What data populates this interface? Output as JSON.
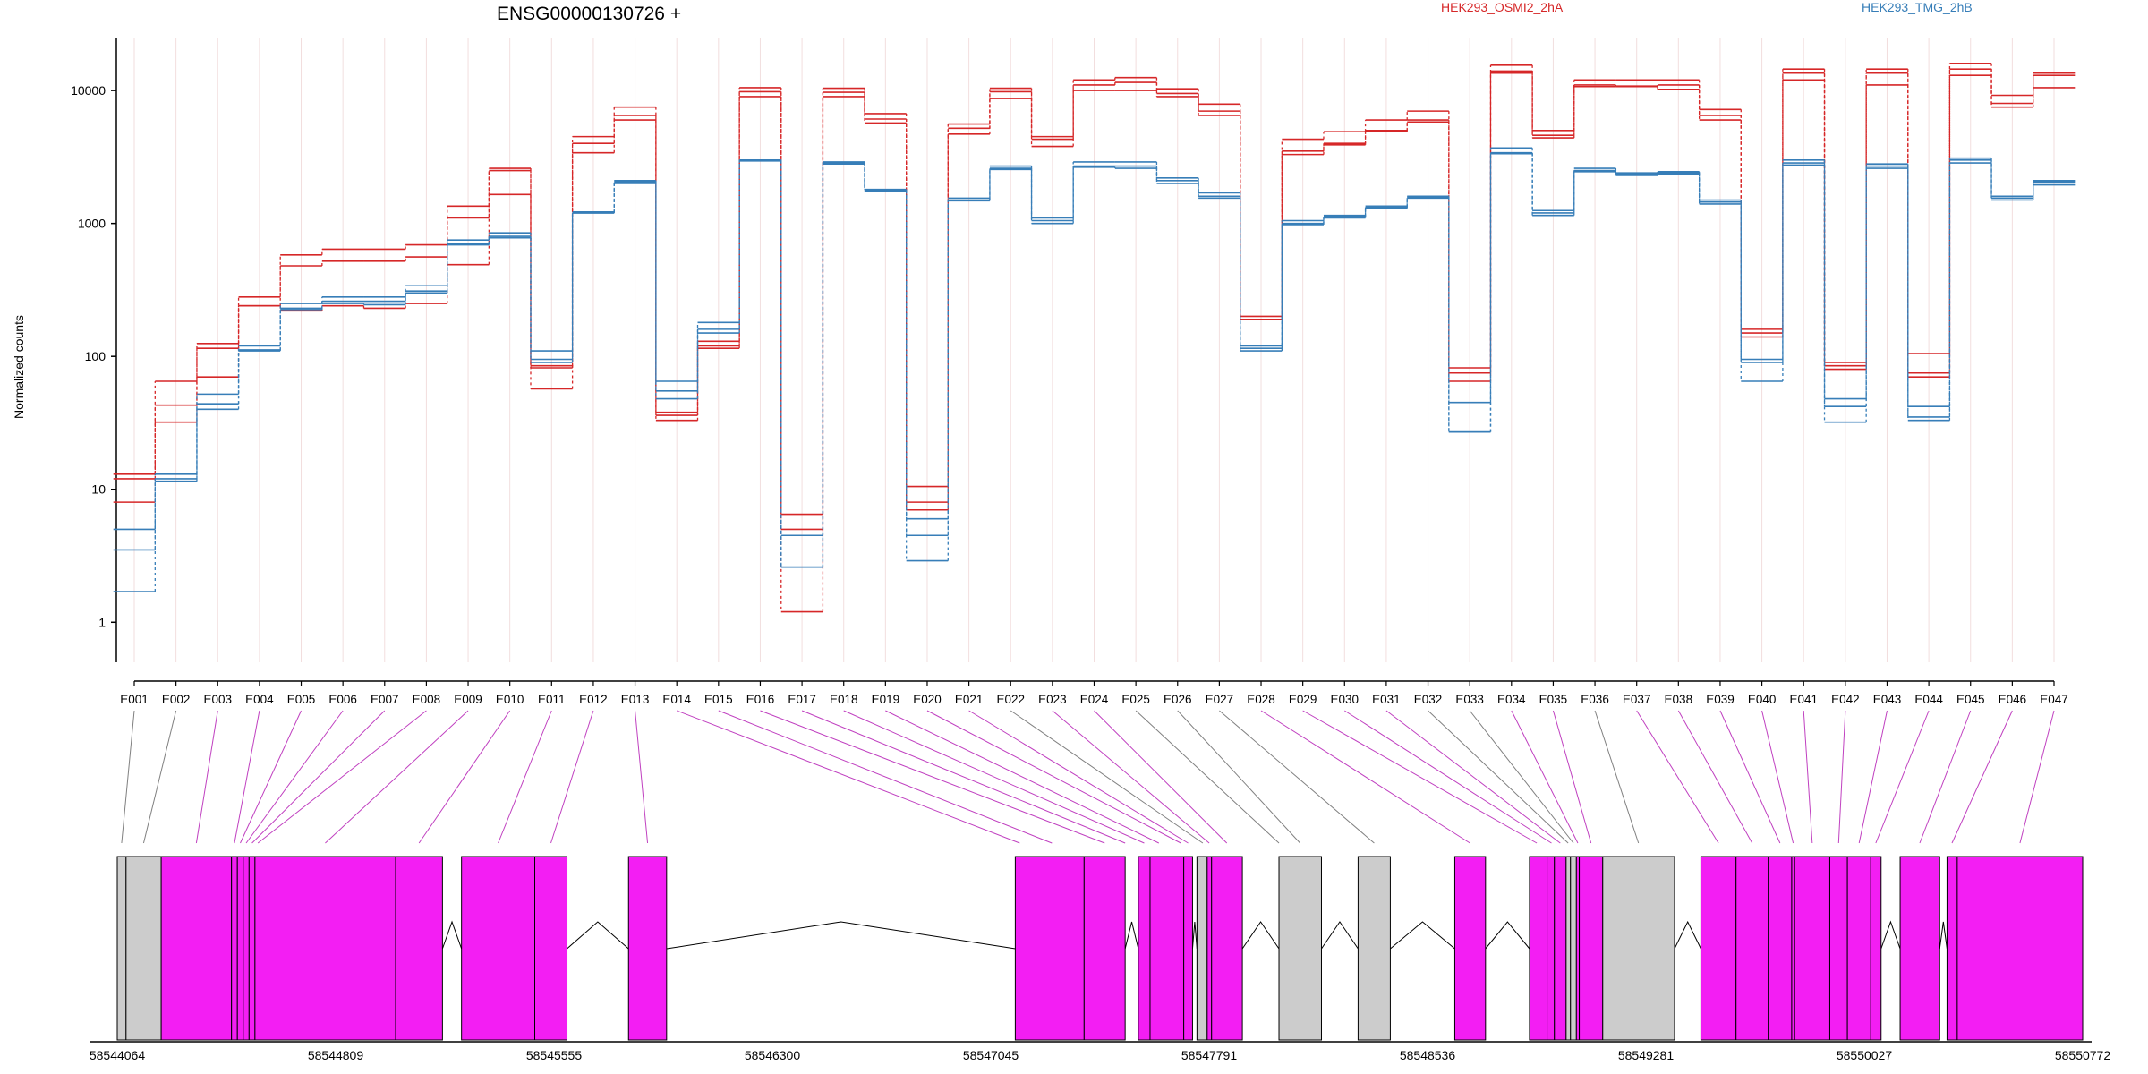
{
  "title": "ENSG00000130726 +",
  "colors": {
    "cond_a": "#d62728",
    "cond_b": "#377eb8",
    "exon_diff": "#f31ef3",
    "exon_other": "#cccccc"
  },
  "chart_data": {
    "type": "line",
    "title": "ENSG00000130726 +",
    "ylabel": "Normalized counts",
    "yscale": "log",
    "ylim": [
      0.5,
      25000
    ],
    "yticks": [
      1,
      10,
      100,
      1000,
      10000
    ],
    "ytick_labels": [
      "1",
      "10",
      "100",
      "1000",
      "10000"
    ],
    "legend": [
      {
        "name": "HEK293_OSMI2_2hA",
        "color": "#d62728"
      },
      {
        "name": "HEK293_TMG_2hB",
        "color": "#377eb8"
      }
    ],
    "categories": [
      "E001",
      "E002",
      "E003",
      "E004",
      "E005",
      "E006",
      "E007",
      "E008",
      "E009",
      "E010",
      "E011",
      "E012",
      "E013",
      "E014",
      "E015",
      "E016",
      "E017",
      "E018",
      "E019",
      "E020",
      "E021",
      "E022",
      "E023",
      "E024",
      "E025",
      "E026",
      "E027",
      "E028",
      "E029",
      "E030",
      "E031",
      "E032",
      "E033",
      "E034",
      "E035",
      "E036",
      "E037",
      "E038",
      "E039",
      "E040",
      "E041",
      "E042",
      "E043",
      "E044",
      "E045",
      "E046",
      "E047"
    ],
    "series": [
      {
        "name": "HEK293_OSMI2_2hA",
        "color": "#d62728",
        "dash": "solid",
        "values": [
          13,
          65,
          125,
          280,
          580,
          640,
          640,
          690,
          1350,
          2600,
          82,
          4500,
          7500,
          36,
          130,
          10500,
          6.5,
          10400,
          6700,
          10.5,
          5600,
          10400,
          4500,
          12000,
          12500,
          10300,
          7900,
          200,
          4300,
          4900,
          6000,
          7000,
          82,
          15500,
          5000,
          12000,
          12000,
          12000,
          7200,
          160,
          14500,
          90,
          14500,
          105,
          16000,
          9200,
          13500
        ]
      },
      {
        "name": "HEK293_OSMI2_2hA",
        "color": "#d62728",
        "dash": "solid",
        "values": [
          8,
          43,
          115,
          240,
          480,
          520,
          520,
          560,
          1100,
          2500,
          85,
          4000,
          6500,
          33,
          115,
          9800,
          5,
          9700,
          6100,
          8,
          5200,
          9800,
          4300,
          11000,
          11500,
          9500,
          7000,
          190,
          3500,
          4000,
          5000,
          6000,
          65,
          14000,
          4600,
          11000,
          10800,
          11000,
          6500,
          140,
          13500,
          80,
          13500,
          75,
          14500,
          8000,
          13000
        ]
      },
      {
        "name": "HEK293_OSMI2_2hA",
        "color": "#d62728",
        "dash": "solid",
        "values": [
          12,
          32,
          70,
          240,
          220,
          240,
          230,
          250,
          490,
          1650,
          57,
          3400,
          6000,
          38,
          120,
          9000,
          1.2,
          9000,
          5700,
          7,
          4700,
          8700,
          3800,
          10000,
          10000,
          9000,
          6500,
          190,
          3300,
          3900,
          4900,
          5800,
          75,
          13500,
          4400,
          10700,
          10700,
          10200,
          6000,
          150,
          12000,
          85,
          11000,
          70,
          13000,
          7500,
          10500
        ]
      },
      {
        "name": "HEK293_TMG_2hB",
        "color": "#377eb8",
        "dash": "solid",
        "values": [
          5,
          13,
          52,
          120,
          250,
          280,
          280,
          340,
          750,
          850,
          110,
          1220,
          2100,
          65,
          180,
          3000,
          4.5,
          2900,
          1800,
          6,
          1550,
          2700,
          1100,
          2900,
          2900,
          2200,
          1700,
          120,
          1050,
          1150,
          1350,
          1600,
          45,
          3700,
          1250,
          2600,
          2400,
          2450,
          1500,
          95,
          3000,
          48,
          2800,
          42,
          3100,
          1600,
          2100
        ]
      },
      {
        "name": "HEK293_TMG_2hB",
        "color": "#377eb8",
        "dash": "solid",
        "values": [
          3.5,
          12,
          44,
          112,
          230,
          260,
          260,
          310,
          700,
          800,
          95,
          1200,
          2050,
          55,
          160,
          3000,
          2.6,
          2850,
          1780,
          4.5,
          1500,
          2600,
          1050,
          2700,
          2700,
          2100,
          1600,
          115,
          1000,
          1120,
          1320,
          1580,
          27,
          3400,
          1200,
          2500,
          2350,
          2400,
          1450,
          90,
          2850,
          42,
          2700,
          35,
          3000,
          1550,
          2050
        ]
      },
      {
        "name": "HEK293_TMG_2hB",
        "color": "#377eb8",
        "dash": "solid",
        "values": [
          1.7,
          11.5,
          40,
          110,
          225,
          250,
          245,
          300,
          690,
          780,
          90,
          1200,
          2000,
          48,
          150,
          2950,
          2.6,
          2800,
          1750,
          2.9,
          1480,
          2550,
          1000,
          2650,
          2600,
          2000,
          1550,
          110,
          980,
          1100,
          1300,
          1550,
          27,
          3350,
          1150,
          2450,
          2300,
          2350,
          1400,
          65,
          2750,
          32,
          2600,
          33,
          2850,
          1500,
          1950
        ]
      }
    ]
  },
  "gene_model": {
    "coordinate_labels": [
      "58544064",
      "58544809",
      "58545555",
      "58546300",
      "58547045",
      "58547791",
      "58548536",
      "58549281",
      "58550027",
      "58550772"
    ],
    "range": [
      58544064,
      58550772
    ],
    "exons": [
      {
        "start": 58544064,
        "end": 58544094,
        "type": "other"
      },
      {
        "start": 58544094,
        "end": 58544214,
        "type": "other"
      },
      {
        "start": 58544214,
        "end": 58544454,
        "type": "diff"
      },
      {
        "start": 58544454,
        "end": 58544474,
        "type": "diff"
      },
      {
        "start": 58544474,
        "end": 58544494,
        "type": "diff"
      },
      {
        "start": 58544494,
        "end": 58544514,
        "type": "diff"
      },
      {
        "start": 58544514,
        "end": 58544534,
        "type": "diff"
      },
      {
        "start": 58544534,
        "end": 58545014,
        "type": "diff"
      },
      {
        "start": 58545014,
        "end": 58545174,
        "type": "diff"
      },
      {
        "start": 58545239,
        "end": 58545489,
        "type": "diff"
      },
      {
        "start": 58545489,
        "end": 58545599,
        "type": "diff"
      },
      {
        "start": 58545809,
        "end": 58545939,
        "type": "diff"
      },
      {
        "start": 58547129,
        "end": 58547364,
        "type": "diff"
      },
      {
        "start": 58547364,
        "end": 58547504,
        "type": "diff"
      },
      {
        "start": 58547549,
        "end": 58547589,
        "type": "diff"
      },
      {
        "start": 58547589,
        "end": 58547704,
        "type": "diff"
      },
      {
        "start": 58547704,
        "end": 58547734,
        "type": "diff"
      },
      {
        "start": 58547749,
        "end": 58547784,
        "type": "other"
      },
      {
        "start": 58547784,
        "end": 58547799,
        "type": "diff"
      },
      {
        "start": 58547799,
        "end": 58547904,
        "type": "diff"
      },
      {
        "start": 58548029,
        "end": 58548174,
        "type": "other"
      },
      {
        "start": 58548299,
        "end": 58548409,
        "type": "other"
      },
      {
        "start": 58548629,
        "end": 58548734,
        "type": "diff"
      },
      {
        "start": 58548884,
        "end": 58548944,
        "type": "diff"
      },
      {
        "start": 58548944,
        "end": 58548969,
        "type": "diff"
      },
      {
        "start": 58548969,
        "end": 58549009,
        "type": "diff"
      },
      {
        "start": 58549009,
        "end": 58549024,
        "type": "other"
      },
      {
        "start": 58549024,
        "end": 58549044,
        "type": "other"
      },
      {
        "start": 58549044,
        "end": 58549054,
        "type": "diff"
      },
      {
        "start": 58549054,
        "end": 58549134,
        "type": "diff"
      },
      {
        "start": 58549134,
        "end": 58549379,
        "type": "other"
      },
      {
        "start": 58549469,
        "end": 58549589,
        "type": "diff"
      },
      {
        "start": 58549589,
        "end": 58549699,
        "type": "diff"
      },
      {
        "start": 58549699,
        "end": 58549779,
        "type": "diff"
      },
      {
        "start": 58549779,
        "end": 58549789,
        "type": "diff"
      },
      {
        "start": 58549789,
        "end": 58549909,
        "type": "diff"
      },
      {
        "start": 58549909,
        "end": 58549969,
        "type": "diff"
      },
      {
        "start": 58549969,
        "end": 58550049,
        "type": "diff"
      },
      {
        "start": 58550049,
        "end": 58550084,
        "type": "diff"
      },
      {
        "start": 58550149,
        "end": 58550284,
        "type": "diff"
      },
      {
        "start": 58550309,
        "end": 58550344,
        "type": "diff"
      },
      {
        "start": 58550344,
        "end": 58550772,
        "type": "diff"
      }
    ],
    "exon_label_links": [
      {
        "label": "E001",
        "target": 58544079,
        "type": "other"
      },
      {
        "label": "E002",
        "target": 58544154,
        "type": "other"
      },
      {
        "label": "E003",
        "target": 58544334,
        "type": "diff"
      },
      {
        "label": "E004",
        "target": 58544464,
        "type": "diff"
      },
      {
        "label": "E005",
        "target": 58544484,
        "type": "diff"
      },
      {
        "label": "E006",
        "target": 58544504,
        "type": "diff"
      },
      {
        "label": "E007",
        "target": 58544524,
        "type": "diff"
      },
      {
        "label": "E008",
        "target": 58544544,
        "type": "diff"
      },
      {
        "label": "E009",
        "target": 58544774,
        "type": "diff"
      },
      {
        "label": "E010",
        "target": 58545094,
        "type": "diff"
      },
      {
        "label": "E011",
        "target": 58545364,
        "type": "diff"
      },
      {
        "label": "E012",
        "target": 58545544,
        "type": "diff"
      },
      {
        "label": "E013",
        "target": 58545874,
        "type": "diff"
      },
      {
        "label": "E014",
        "target": 58547144,
        "type": "diff"
      },
      {
        "label": "E015",
        "target": 58547254,
        "type": "diff"
      },
      {
        "label": "E016",
        "target": 58547434,
        "type": "diff"
      },
      {
        "label": "E017",
        "target": 58547504,
        "type": "diff"
      },
      {
        "label": "E018",
        "target": 58547569,
        "type": "diff"
      },
      {
        "label": "E019",
        "target": 58547619,
        "type": "diff"
      },
      {
        "label": "E020",
        "target": 58547694,
        "type": "diff"
      },
      {
        "label": "E021",
        "target": 58547719,
        "type": "diff"
      },
      {
        "label": "E022",
        "target": 58547769,
        "type": "other"
      },
      {
        "label": "E023",
        "target": 58547791,
        "type": "diff"
      },
      {
        "label": "E024",
        "target": 58547851,
        "type": "diff"
      },
      {
        "label": "E025",
        "target": 58548029,
        "type": "other"
      },
      {
        "label": "E026",
        "target": 58548101,
        "type": "other"
      },
      {
        "label": "E027",
        "target": 58548354,
        "type": "other"
      },
      {
        "label": "E028",
        "target": 58548681,
        "type": "diff"
      },
      {
        "label": "E029",
        "target": 58548909,
        "type": "diff"
      },
      {
        "label": "E030",
        "target": 58548959,
        "type": "diff"
      },
      {
        "label": "E031",
        "target": 58548989,
        "type": "diff"
      },
      {
        "label": "E032",
        "target": 58549016,
        "type": "other"
      },
      {
        "label": "E033",
        "target": 58549034,
        "type": "other"
      },
      {
        "label": "E034",
        "target": 58549049,
        "type": "diff"
      },
      {
        "label": "E035",
        "target": 58549094,
        "type": "diff"
      },
      {
        "label": "E036",
        "target": 58549256,
        "type": "other"
      },
      {
        "label": "E037",
        "target": 58549529,
        "type": "diff"
      },
      {
        "label": "E038",
        "target": 58549644,
        "type": "diff"
      },
      {
        "label": "E039",
        "target": 58549739,
        "type": "diff"
      },
      {
        "label": "E040",
        "target": 58549784,
        "type": "diff"
      },
      {
        "label": "E041",
        "target": 58549849,
        "type": "diff"
      },
      {
        "label": "E042",
        "target": 58549939,
        "type": "diff"
      },
      {
        "label": "E043",
        "target": 58550009,
        "type": "diff"
      },
      {
        "label": "E044",
        "target": 58550066,
        "type": "diff"
      },
      {
        "label": "E045",
        "target": 58550216,
        "type": "diff"
      },
      {
        "label": "E046",
        "target": 58550326,
        "type": "diff"
      },
      {
        "label": "E047",
        "target": 58550558,
        "type": "diff"
      }
    ]
  }
}
